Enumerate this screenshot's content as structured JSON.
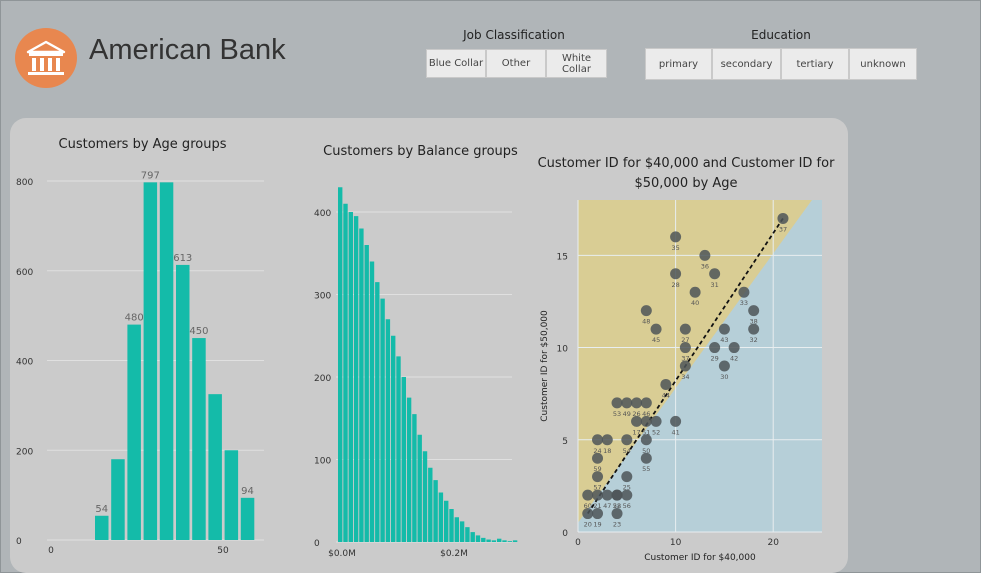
{
  "header": {
    "title": "American Bank",
    "logo_icon": "bank-building-icon",
    "logo_color": "#e8874f"
  },
  "slicers": {
    "job": {
      "title": "Job Classification",
      "options": [
        "Blue Collar",
        "Other",
        "White\nCollar"
      ]
    },
    "education": {
      "title": "Education",
      "options": [
        "primary",
        "secondary",
        "tertiary",
        "unknown"
      ]
    }
  },
  "colors": {
    "bar": "#14bba9",
    "point": "#4e5558",
    "panel": "#cbcbcb",
    "background": "#b0b5b8",
    "zone_upper": "#d9cd94",
    "zone_lower": "#b6cfd8"
  },
  "chart_data": [
    {
      "type": "bar",
      "title": "Customers by Age groups",
      "x": [
        15,
        20,
        25,
        30,
        35,
        40,
        45,
        50,
        55,
        60
      ],
      "values": [
        54,
        180,
        480,
        797,
        797,
        613,
        450,
        325,
        200,
        94
      ],
      "labels": {
        "0": "54",
        "2": "480",
        "3": "797",
        "5": "613",
        "6": "450",
        "9": "94"
      },
      "xticks": [
        "0",
        "50"
      ],
      "yticks": [
        "0",
        "200",
        "400",
        "600",
        "800"
      ],
      "ylim": [
        0,
        850
      ],
      "grid": true
    },
    {
      "type": "bar",
      "title": "Customers by Balance groups",
      "values": [
        430,
        410,
        400,
        395,
        380,
        360,
        340,
        315,
        295,
        270,
        250,
        225,
        200,
        175,
        155,
        130,
        110,
        90,
        75,
        60,
        50,
        40,
        30,
        25,
        18,
        12,
        8,
        5,
        3,
        2,
        4,
        2,
        1,
        2
      ],
      "xticks": [
        "$0.0M",
        "$0.2M"
      ],
      "yticks": [
        "0",
        "100",
        "200",
        "300",
        "400"
      ],
      "ylim": [
        0,
        440
      ],
      "grid": true
    },
    {
      "type": "scatter",
      "title": "Customer ID for $40,000 and Customer ID for $50,000 by Age",
      "xlabel": "Customer ID for $40,000",
      "ylabel": "Customer ID for $50,000",
      "xlim": [
        0,
        25
      ],
      "ylim": [
        0,
        18
      ],
      "xticks": [
        "0",
        "10",
        "20"
      ],
      "yticks": [
        "0",
        "5",
        "10",
        "15"
      ],
      "trend_line": true,
      "points": [
        {
          "x": 1,
          "y": 1,
          "label": "20"
        },
        {
          "x": 2,
          "y": 1,
          "label": "19"
        },
        {
          "x": 4,
          "y": 1,
          "label": "23"
        },
        {
          "x": 1,
          "y": 2,
          "label": "60"
        },
        {
          "x": 2,
          "y": 2,
          "label": "21"
        },
        {
          "x": 3,
          "y": 2,
          "label": "47"
        },
        {
          "x": 4,
          "y": 2,
          "label": "22"
        },
        {
          "x": 5,
          "y": 2,
          "label": "56"
        },
        {
          "x": 4,
          "y": 2,
          "label": "58"
        },
        {
          "x": 5,
          "y": 3,
          "label": "25"
        },
        {
          "x": 2,
          "y": 3,
          "label": "57"
        },
        {
          "x": 2,
          "y": 4,
          "label": "59"
        },
        {
          "x": 2,
          "y": 5,
          "label": "24"
        },
        {
          "x": 3,
          "y": 5,
          "label": "18"
        },
        {
          "x": 5,
          "y": 5,
          "label": "54"
        },
        {
          "x": 7,
          "y": 4,
          "label": "55"
        },
        {
          "x": 7,
          "y": 5,
          "label": "50"
        },
        {
          "x": 4,
          "y": 7,
          "label": "53"
        },
        {
          "x": 5,
          "y": 7,
          "label": "49"
        },
        {
          "x": 6,
          "y": 7,
          "label": "26"
        },
        {
          "x": 7,
          "y": 7,
          "label": "46"
        },
        {
          "x": 6,
          "y": 6,
          "label": "17"
        },
        {
          "x": 7,
          "y": 6,
          "label": "51"
        },
        {
          "x": 8,
          "y": 6,
          "label": "52"
        },
        {
          "x": 10,
          "y": 6,
          "label": "41"
        },
        {
          "x": 9,
          "y": 8,
          "label": "44"
        },
        {
          "x": 11,
          "y": 9,
          "label": "34"
        },
        {
          "x": 11,
          "y": 10,
          "label": "37"
        },
        {
          "x": 11,
          "y": 11,
          "label": "27"
        },
        {
          "x": 8,
          "y": 11,
          "label": "45"
        },
        {
          "x": 7,
          "y": 12,
          "label": "48"
        },
        {
          "x": 12,
          "y": 13,
          "label": "40"
        },
        {
          "x": 10,
          "y": 14,
          "label": "28"
        },
        {
          "x": 10,
          "y": 16,
          "label": "35"
        },
        {
          "x": 13,
          "y": 15,
          "label": "36"
        },
        {
          "x": 14,
          "y": 14,
          "label": "31"
        },
        {
          "x": 14,
          "y": 10,
          "label": "29"
        },
        {
          "x": 15,
          "y": 9,
          "label": "30"
        },
        {
          "x": 15,
          "y": 11,
          "label": "43"
        },
        {
          "x": 16,
          "y": 10,
          "label": "42"
        },
        {
          "x": 17,
          "y": 13,
          "label": "33"
        },
        {
          "x": 18,
          "y": 12,
          "label": "38"
        },
        {
          "x": 18,
          "y": 11,
          "label": "32"
        },
        {
          "x": 21,
          "y": 17,
          "label": "37"
        }
      ]
    }
  ]
}
